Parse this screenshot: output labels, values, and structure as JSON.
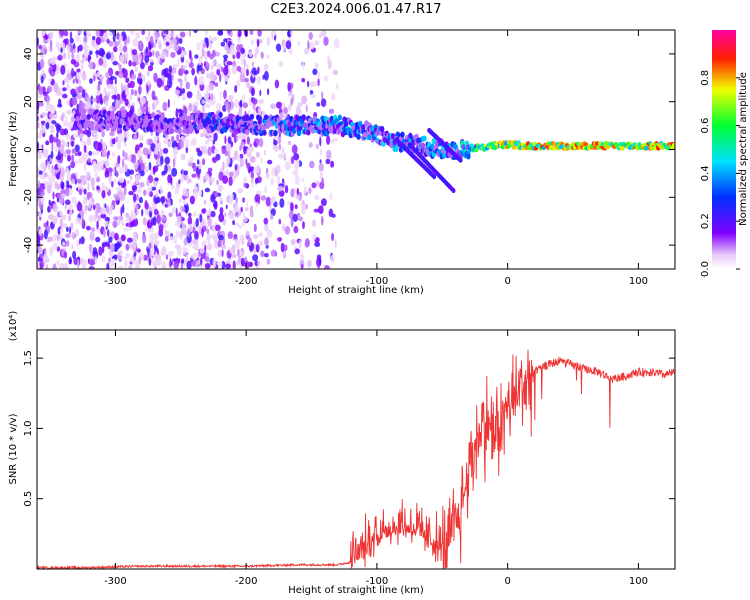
{
  "title": "C2E3.2024.006.01.47.R17",
  "chart_data": [
    {
      "type": "heatmap",
      "title": "C2E3.2024.006.01.47.R17",
      "xlabel": "Height of straight line (km)",
      "ylabel": "Frequency (Hz)",
      "xlim": [
        -360,
        128
      ],
      "ylim": [
        -50,
        50
      ],
      "xticks": [
        -300,
        -200,
        -100,
        0,
        100
      ],
      "xtick_labels": [
        "-300",
        "-200",
        "-100",
        "0",
        "100"
      ],
      "yticks": [
        -40,
        -20,
        0,
        20,
        40
      ],
      "ytick_labels": [
        "-40",
        "-20",
        "0",
        "20",
        "40"
      ],
      "colorbar": {
        "label": "Normalized spectral amplitude",
        "range": [
          0,
          1
        ],
        "ticks": [
          0.0,
          0.2,
          0.4,
          0.6,
          0.8
        ],
        "tick_labels": [
          "0.0",
          "0.2",
          "0.4",
          "0.6",
          "0.8"
        ]
      },
      "signal_track": {
        "x": [
          -330,
          -300,
          -260,
          -220,
          -190,
          -160,
          -130,
          -110,
          -90,
          -70,
          -50,
          -35,
          -20,
          0,
          20,
          60,
          100,
          128
        ],
        "y": [
          13,
          12,
          11,
          11,
          10,
          10,
          10,
          8,
          4,
          2,
          0,
          0,
          1,
          2,
          1.5,
          1.5,
          1.5,
          1.5
        ],
        "amplitude": [
          0.25,
          0.3,
          0.3,
          0.35,
          0.4,
          0.45,
          0.5,
          0.45,
          0.45,
          0.45,
          0.5,
          0.55,
          0.75,
          0.85,
          0.9,
          0.9,
          0.9,
          0.9
        ]
      },
      "grid": false
    },
    {
      "type": "line",
      "xlabel": "Height of straight line (km)",
      "ylabel": "SNR (10 * v/v)",
      "y_multiplier_label": "(x10⁴)",
      "xlim": [
        -360,
        128
      ],
      "ylim": [
        0,
        1.7
      ],
      "xticks": [
        -300,
        -200,
        -100,
        0,
        100
      ],
      "xtick_labels": [
        "-300",
        "-200",
        "-100",
        "0",
        "100"
      ],
      "yticks": [
        0.5,
        1.0,
        1.5
      ],
      "ytick_labels": [
        "0.5",
        "1.0",
        "1.5"
      ],
      "series": [
        {
          "color": "#ee3333",
          "x": [
            -360,
            -320,
            -280,
            -240,
            -200,
            -160,
            -130,
            -120,
            -110,
            -100,
            -90,
            -80,
            -70,
            -60,
            -50,
            -45,
            -40,
            -35,
            -30,
            -25,
            -20,
            -15,
            -10,
            -5,
            0,
            5,
            10,
            20,
            30,
            40,
            50,
            60,
            70,
            80,
            90,
            100,
            110,
            120,
            128
          ],
          "y": [
            0.01,
            0.01,
            0.02,
            0.02,
            0.02,
            0.03,
            0.03,
            0.05,
            0.1,
            0.22,
            0.25,
            0.28,
            0.25,
            0.18,
            0.12,
            0.18,
            0.3,
            0.45,
            0.7,
            0.9,
            1.0,
            1.05,
            0.95,
            1.05,
            1.15,
            1.2,
            1.3,
            1.4,
            1.45,
            1.48,
            1.45,
            1.42,
            1.4,
            1.35,
            1.37,
            1.4,
            1.4,
            1.38,
            1.4
          ]
        }
      ],
      "grid": false
    }
  ]
}
